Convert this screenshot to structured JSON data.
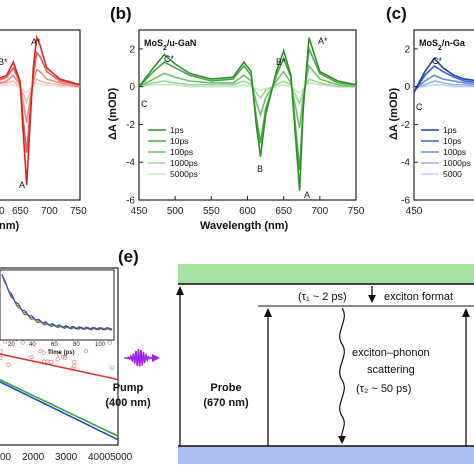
{
  "panels": {
    "a": {
      "xticks": [
        "0",
        "650",
        "700",
        "750"
      ],
      "xlabel_fragment": "nm)",
      "yticks": [],
      "peak_labels": [
        "B*",
        "A*",
        "A"
      ]
    },
    "b": {
      "letter": "(b)",
      "title_prefix": "MoS",
      "title_sub": "2",
      "title_suffix": "/u-GaN",
      "xticks": [
        "450",
        "500",
        "550",
        "600",
        "650",
        "700",
        "750"
      ],
      "yticks": [
        "2",
        "0",
        "-2",
        "-4",
        "-6"
      ],
      "xlabel": "Wavelength (nm)",
      "ylabel": "ΔA (mOD)",
      "peak_labels": [
        "C*",
        "B*",
        "A*",
        "C",
        "B",
        "A"
      ],
      "legend": [
        "1ps",
        "10ps",
        "100ps",
        "1000ps",
        "5000ps"
      ]
    },
    "c": {
      "letter": "(c)",
      "title_prefix": "MoS",
      "title_sub": "2",
      "title_suffix": "/n-Ga",
      "yticks": [
        "2",
        "0",
        "-2",
        "-4",
        "-6"
      ],
      "ylabel": "ΔA (mOD)",
      "peak_labels": [
        "C*",
        "C"
      ],
      "legend": [
        "1ps",
        "10ps",
        "100ps",
        "1000ps",
        "5000"
      ]
    },
    "d": {
      "xticks": [
        "00",
        "2000",
        "3000",
        "4000",
        "5000"
      ],
      "inset_xticks": [
        "20",
        "40",
        "60",
        "80",
        "100"
      ],
      "inset_xlabel": "Time (ps)"
    },
    "e": {
      "letter": "(e)",
      "tau1": "(τ₁ ~ 2 ps)",
      "formation": "exciton format",
      "pump": "Pump",
      "pump_wl": "(400 nm)",
      "probe": "Probe",
      "probe_wl": "(670 nm)",
      "scatter_line1": "exciton–phonon",
      "scatter_line2": "scattering",
      "tau2": "(τ₂ ~ 50 ps)"
    }
  },
  "colors": {
    "red": "#e8312c",
    "green": "#3aa534",
    "blue": "#2546c9",
    "band_green": "#a6e3a0",
    "band_blue": "#a9bdf0",
    "pump": "#a020f0"
  },
  "chart_data": [
    {
      "type": "line",
      "panel": "a",
      "x_range": [
        600,
        750
      ],
      "y_range": [
        -6,
        3
      ],
      "series": [
        {
          "x": [
            600,
            620,
            640,
            650,
            660,
            665,
            670,
            675,
            680,
            685,
            690,
            700,
            720,
            750
          ],
          "y": [
            0.2,
            0.3,
            0.6,
            1.3,
            0.3,
            -2.5,
            -5.2,
            -2.0,
            1.0,
            2.6,
            2.2,
            1.0,
            0.4,
            0.1
          ]
        },
        {
          "x": [
            600,
            620,
            640,
            650,
            660,
            665,
            670,
            675,
            680,
            685,
            690,
            700,
            720,
            750
          ],
          "y": [
            0.1,
            0.2,
            0.5,
            1.0,
            0.2,
            -1.8,
            -3.5,
            -1.4,
            0.6,
            1.8,
            1.6,
            0.8,
            0.3,
            0.1
          ]
        },
        {
          "x": [
            600,
            620,
            640,
            650,
            660,
            665,
            670,
            675,
            680,
            685,
            690,
            700,
            720,
            750
          ],
          "y": [
            0.1,
            0.1,
            0.3,
            0.6,
            0.1,
            -0.9,
            -1.9,
            -0.7,
            0.3,
            0.9,
            0.8,
            0.4,
            0.2,
            0.0
          ]
        },
        {
          "x": [
            600,
            620,
            640,
            650,
            660,
            665,
            670,
            675,
            680,
            685,
            690,
            700,
            720,
            750
          ],
          "y": [
            0.0,
            0.1,
            0.2,
            0.3,
            0.0,
            -0.4,
            -0.8,
            -0.3,
            0.1,
            0.4,
            0.3,
            0.2,
            0.1,
            0.0
          ]
        },
        {
          "x": [
            600,
            620,
            640,
            650,
            660,
            665,
            670,
            675,
            680,
            685,
            690,
            700,
            720,
            750
          ],
          "y": [
            0.0,
            0.0,
            0.1,
            0.1,
            0.0,
            -0.2,
            -0.3,
            -0.1,
            0.0,
            0.2,
            0.1,
            0.1,
            0.0,
            0.0
          ]
        }
      ]
    },
    {
      "type": "line",
      "panel": "b",
      "x_range": [
        450,
        750
      ],
      "y_range": [
        -6,
        3
      ],
      "series": [
        {
          "name": "1ps",
          "x": [
            450,
            470,
            485,
            500,
            520,
            550,
            580,
            595,
            605,
            612,
            618,
            625,
            640,
            650,
            660,
            667,
            672,
            677,
            685,
            700,
            725,
            750
          ],
          "y": [
            0.0,
            1.0,
            1.7,
            1.2,
            0.7,
            0.4,
            0.5,
            1.3,
            0.8,
            -2.0,
            -3.7,
            -1.5,
            0.8,
            1.9,
            0.6,
            -3.0,
            -5.5,
            -1.2,
            2.6,
            0.8,
            0.3,
            0.1
          ]
        },
        {
          "name": "10ps",
          "x": [
            450,
            470,
            485,
            500,
            520,
            550,
            580,
            595,
            605,
            612,
            618,
            625,
            640,
            650,
            660,
            667,
            672,
            677,
            685,
            700,
            725,
            750
          ],
          "y": [
            0.0,
            0.8,
            1.3,
            1.0,
            0.6,
            0.3,
            0.4,
            1.1,
            0.6,
            -1.6,
            -3.0,
            -1.2,
            0.6,
            1.5,
            0.5,
            -2.4,
            -4.4,
            -1.0,
            2.0,
            0.7,
            0.2,
            0.1
          ]
        },
        {
          "name": "100ps",
          "x": [
            450,
            470,
            485,
            500,
            520,
            550,
            580,
            595,
            605,
            612,
            618,
            625,
            640,
            650,
            660,
            667,
            672,
            677,
            685,
            700,
            725,
            750
          ],
          "y": [
            0.0,
            0.4,
            0.7,
            0.5,
            0.3,
            0.2,
            0.2,
            0.6,
            0.3,
            -0.8,
            -1.5,
            -0.6,
            0.3,
            0.8,
            0.2,
            -1.2,
            -2.2,
            -0.5,
            1.1,
            0.4,
            0.1,
            0.0
          ]
        },
        {
          "name": "1000ps",
          "x": [
            450,
            470,
            485,
            500,
            520,
            550,
            580,
            595,
            605,
            612,
            618,
            625,
            640,
            650,
            660,
            667,
            672,
            677,
            685,
            700,
            725,
            750
          ],
          "y": [
            0.0,
            0.2,
            0.3,
            0.2,
            0.1,
            0.1,
            0.1,
            0.3,
            0.1,
            -0.3,
            -0.6,
            -0.2,
            0.1,
            0.3,
            0.1,
            -0.5,
            -0.9,
            -0.2,
            0.4,
            0.2,
            0.0,
            0.0
          ]
        },
        {
          "name": "5000ps",
          "x": [
            450,
            470,
            485,
            500,
            520,
            550,
            580,
            595,
            605,
            612,
            618,
            625,
            640,
            650,
            660,
            667,
            672,
            677,
            685,
            700,
            725,
            750
          ],
          "y": [
            0.0,
            0.1,
            0.1,
            0.1,
            0.0,
            0.0,
            0.0,
            0.1,
            0.0,
            -0.1,
            -0.2,
            -0.1,
            0.0,
            0.1,
            0.0,
            -0.2,
            -0.3,
            -0.1,
            0.2,
            0.1,
            0.0,
            0.0
          ]
        }
      ]
    },
    {
      "type": "line",
      "panel": "c",
      "x_range": [
        450,
        750
      ],
      "y_range": [
        -6,
        3
      ],
      "series": [
        {
          "name": "1ps",
          "x": [
            450,
            465,
            478,
            490,
            505,
            520,
            540
          ],
          "y": [
            -0.3,
            0.8,
            1.5,
            1.0,
            0.6,
            0.4,
            0.3
          ]
        },
        {
          "name": "10ps",
          "x": [
            450,
            465,
            478,
            490,
            505,
            520,
            540
          ],
          "y": [
            -0.3,
            0.6,
            1.1,
            0.8,
            0.5,
            0.3,
            0.2
          ]
        },
        {
          "name": "100ps",
          "x": [
            450,
            465,
            478,
            490,
            505,
            520,
            540
          ],
          "y": [
            -0.2,
            0.3,
            0.6,
            0.4,
            0.3,
            0.2,
            0.1
          ]
        },
        {
          "name": "1000ps",
          "x": [
            450,
            465,
            478,
            490,
            505,
            520,
            540
          ],
          "y": [
            -0.1,
            0.1,
            0.3,
            0.2,
            0.1,
            0.1,
            0.0
          ]
        },
        {
          "name": "5000",
          "x": [
            450,
            465,
            478,
            490,
            505,
            520,
            540
          ],
          "y": [
            0.0,
            0.0,
            0.1,
            0.1,
            0.0,
            0.0,
            0.0
          ]
        }
      ]
    },
    {
      "type": "scatter",
      "panel": "d",
      "x_range": [
        1000,
        5000
      ],
      "y_range": [
        0,
        1
      ],
      "series": [
        {
          "name": "red fit",
          "x": [
            1000,
            5000
          ],
          "y": [
            0.55,
            0.37
          ]
        },
        {
          "name": "green fit",
          "x": [
            1000,
            5000
          ],
          "y": [
            0.45,
            0.05
          ]
        },
        {
          "name": "blue fit",
          "x": [
            1000,
            5000
          ],
          "y": [
            0.44,
            0.03
          ]
        }
      ],
      "inset": {
        "x_range": [
          0,
          100
        ],
        "xlabel": "Time (ps)"
      }
    }
  ]
}
